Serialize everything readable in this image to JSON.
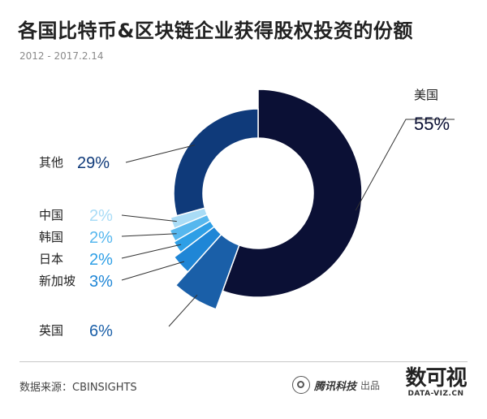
{
  "header": {
    "title": "各国比特币&区块链企业获得股权投资的份额",
    "subtitle": "2012 - 2017.2.14"
  },
  "chart_data": {
    "type": "pie",
    "variant": "donut",
    "title": "各国比特币&区块链企业获得股权投资的份额",
    "subtitle": "2012 - 2017.2.14",
    "unit": "%",
    "slices": [
      {
        "label": "美国",
        "value": 55,
        "display": "55%",
        "color": "#0b1035"
      },
      {
        "label": "英国",
        "value": 6,
        "display": "6%",
        "color": "#1a5fa8"
      },
      {
        "label": "新加坡",
        "value": 3,
        "display": "3%",
        "color": "#1f86d6"
      },
      {
        "label": "日本",
        "value": 2,
        "display": "2%",
        "color": "#2e9fe6"
      },
      {
        "label": "韩国",
        "value": 2,
        "display": "2%",
        "color": "#56b7ee"
      },
      {
        "label": "中国",
        "value": 2,
        "display": "2%",
        "color": "#a9dcf6"
      },
      {
        "label": "其他",
        "value": 29,
        "display": "29%",
        "color": "#0f3a7a"
      }
    ]
  },
  "footer": {
    "source": "数据来源：CBINSIGHTS",
    "brand_name": "腾讯科技",
    "brand_suffix": "出品",
    "logo_text": "数可视",
    "logo_sub": "DATA-VIZ.CN"
  },
  "colors": {
    "us": "#0b1035",
    "other": "#0f3a7a",
    "label_text": "#222222"
  }
}
